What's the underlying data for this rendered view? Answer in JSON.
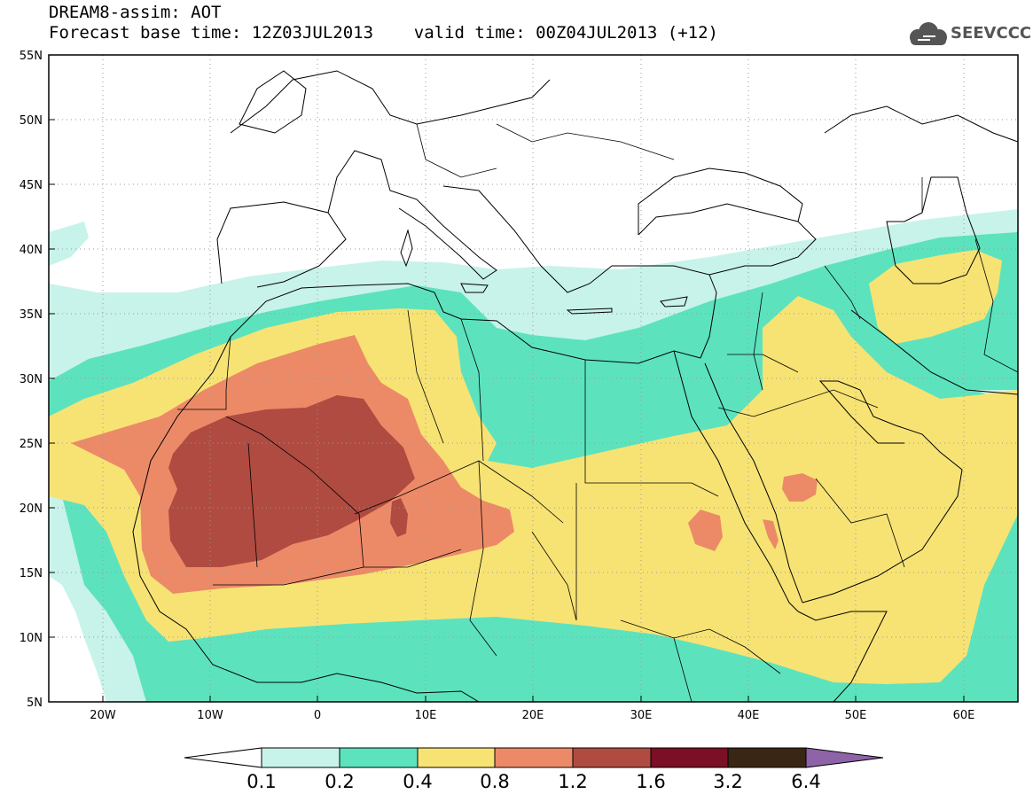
{
  "header": {
    "title_line1": "DREAM8-assim: AOT",
    "title_line2": "Forecast base time: 12Z03JUL2013    valid time: 00Z04JUL2013 (+12)",
    "logo_text": "SEEVCCC",
    "logo_icon": "cloud-icon"
  },
  "map": {
    "lon_range": [
      -25,
      65
    ],
    "lat_range": [
      5,
      55
    ],
    "lat_labels": [
      "55N",
      "50N",
      "45N",
      "40N",
      "35N",
      "30N",
      "25N",
      "20N",
      "15N",
      "10N",
      "5N"
    ],
    "lon_labels": [
      "20W",
      "10W",
      "0",
      "10E",
      "20E",
      "30E",
      "40E",
      "50E",
      "60E"
    ],
    "grid": "dotted"
  },
  "colorbar": {
    "levels": [
      "0.1",
      "0.2",
      "0.4",
      "0.8",
      "1.2",
      "1.6",
      "3.2",
      "6.4"
    ],
    "colors": [
      "#c8f3ea",
      "#5ce3be",
      "#f7e374",
      "#ec8a68",
      "#b04b41",
      "#7a0f25",
      "#3a2614",
      "#8e63a8"
    ],
    "under_color": "#ffffff"
  }
}
